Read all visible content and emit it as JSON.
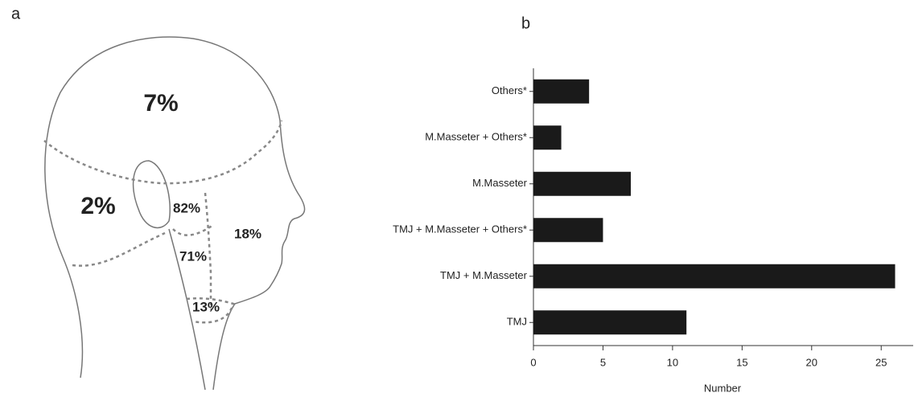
{
  "panel_a": {
    "label": "a",
    "regions": [
      "7%",
      "2%",
      "82%",
      "18%",
      "71%",
      "13%"
    ]
  },
  "chart_data": {
    "type": "barh",
    "label": "b",
    "categories": [
      "Others*",
      "M.Masseter + Others*",
      "M.Masseter",
      "TMJ + M.Masseter + Others*",
      "TMJ + M.Masseter",
      "TMJ"
    ],
    "values": [
      4,
      2,
      7,
      5,
      26,
      11
    ],
    "color": "#1a1a1a",
    "xlim": [
      0,
      27.3
    ],
    "xticks": [
      0,
      5,
      10,
      15,
      20,
      25
    ],
    "xlabel": "Number"
  }
}
